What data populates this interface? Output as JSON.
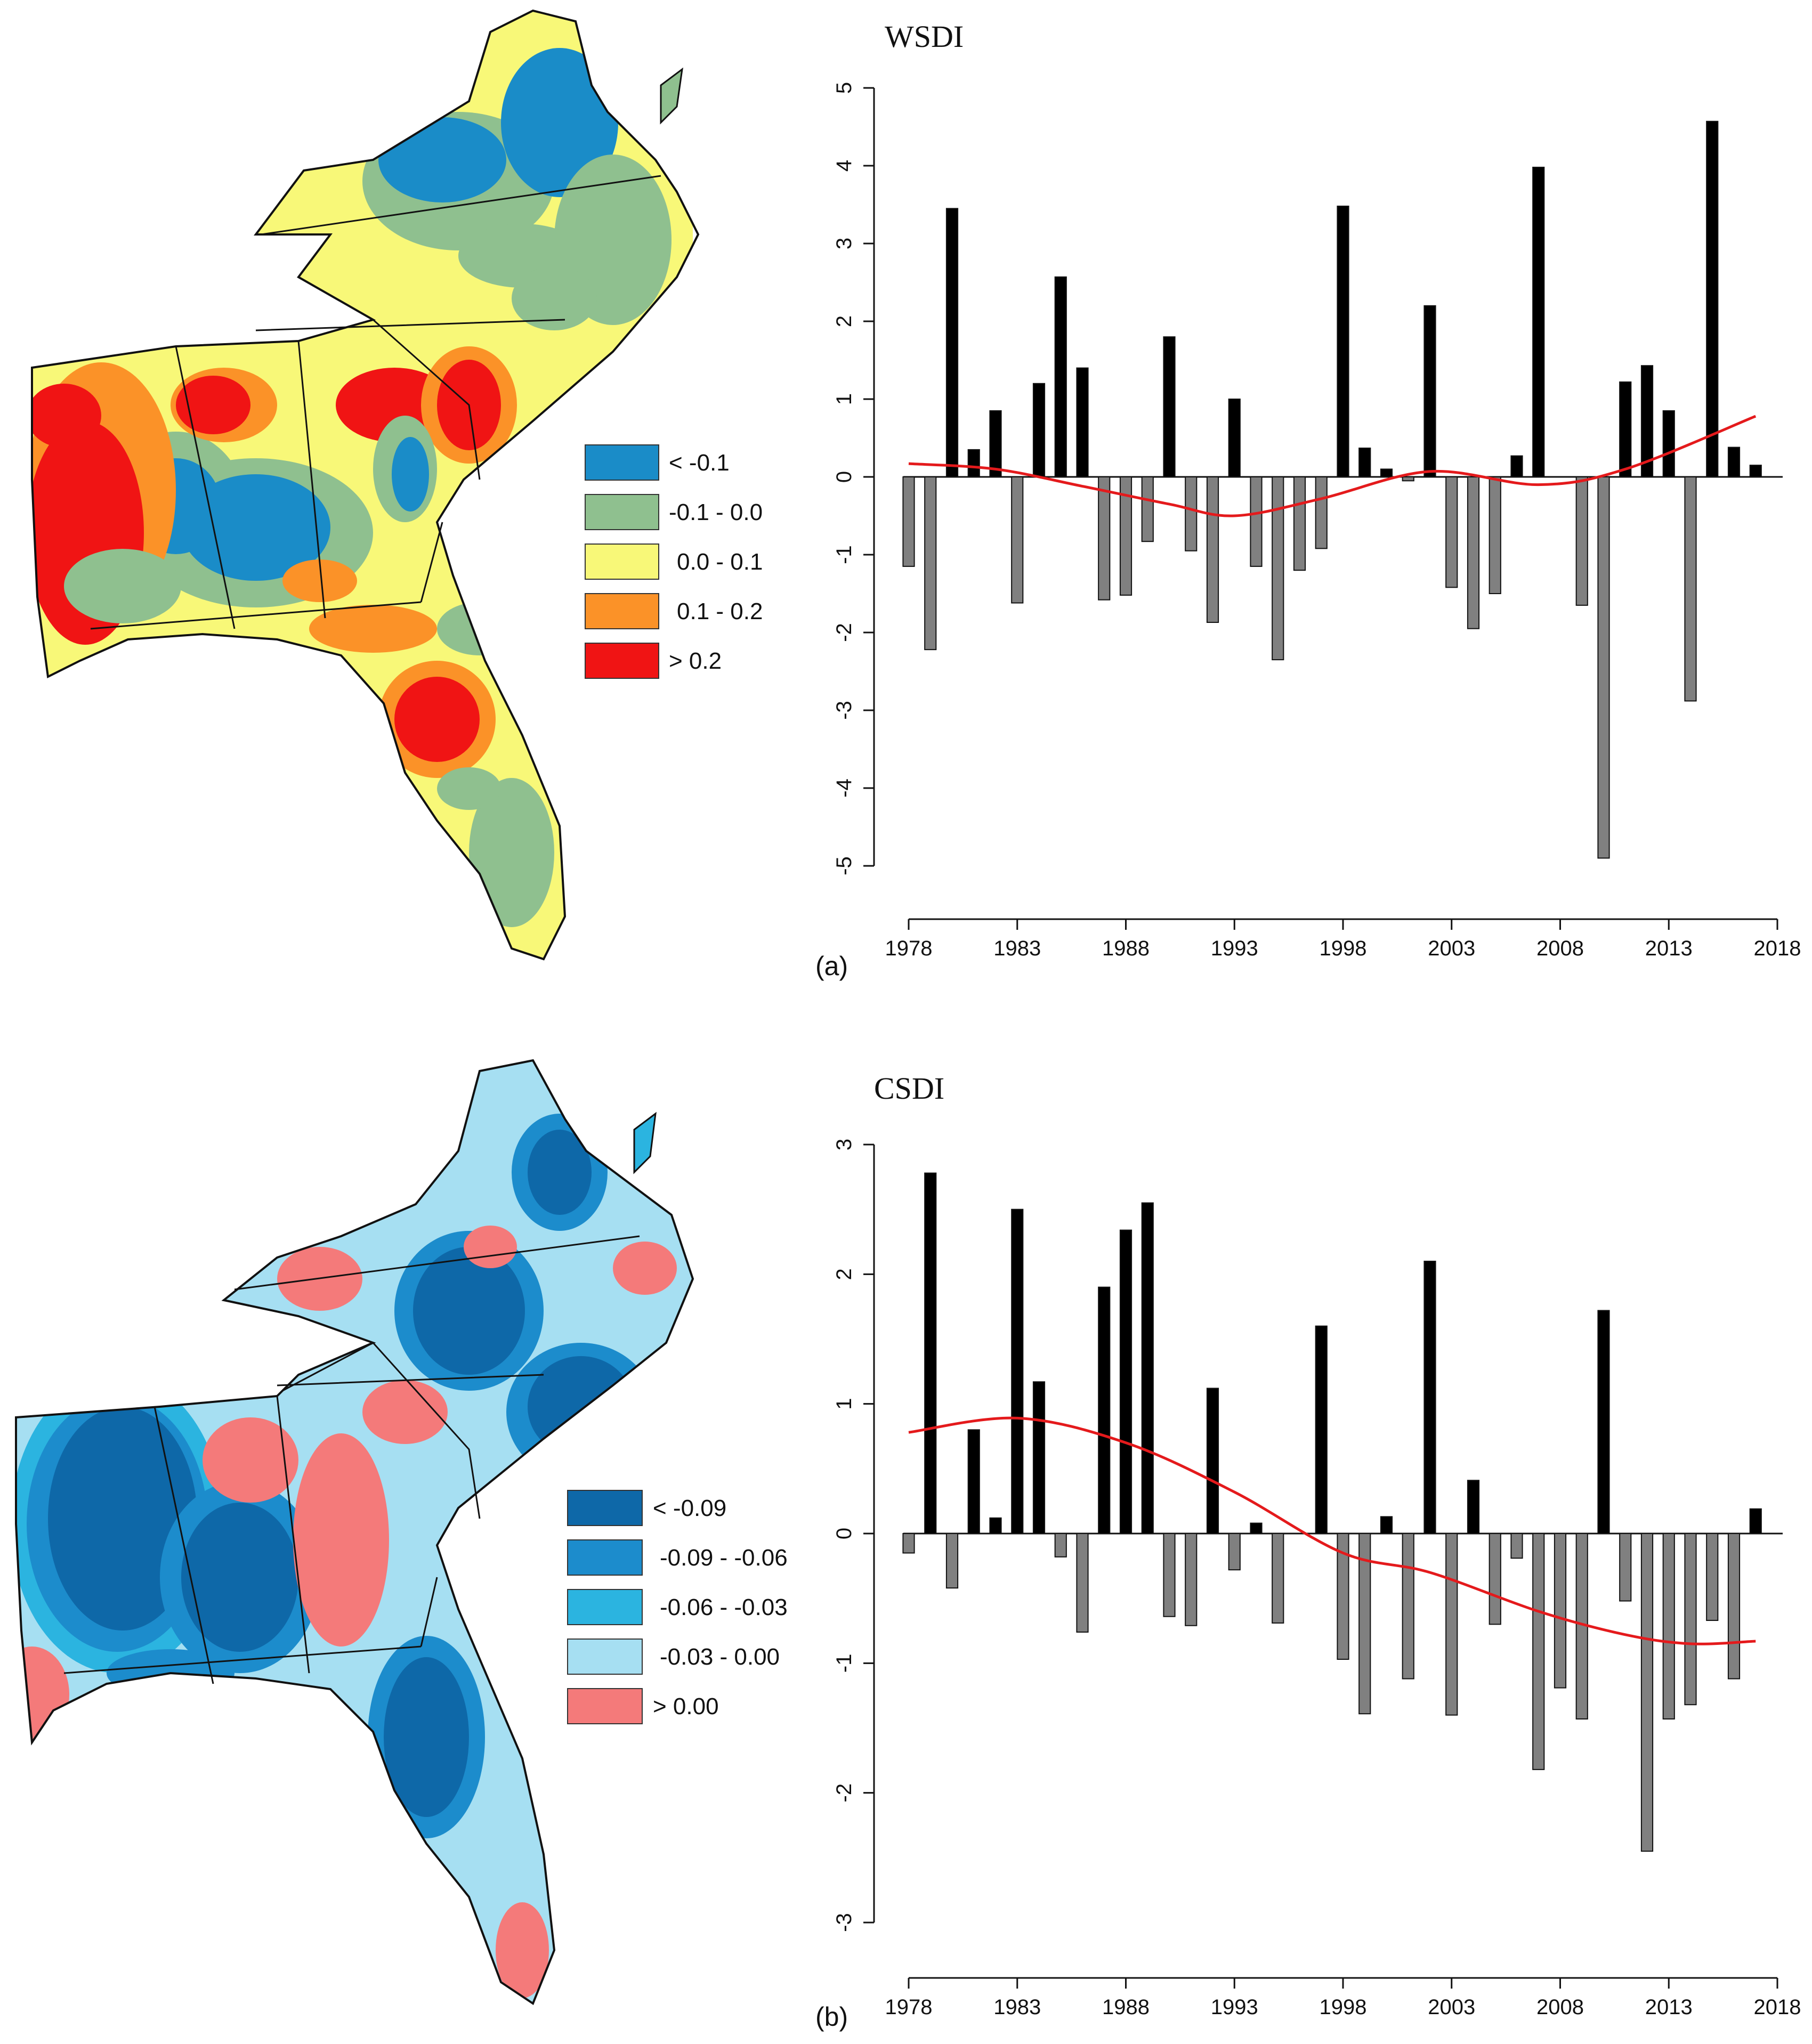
{
  "figure": {
    "panels": [
      {
        "id": "a",
        "panel_label": "(a)",
        "map": {
          "legend": [
            {
              "label": "< -0.1",
              "color": "#1a8cc8"
            },
            {
              "label": "-0.1 - 0.0",
              "color": "#8fc08f"
            },
            {
              "label": "0.0 - 0.1",
              "color": "#f8f878"
            },
            {
              "label": "0.1 - 0.2",
              "color": "#fb9228"
            },
            {
              "label": "> 0.2",
              "color": "#f01414"
            }
          ]
        }
      },
      {
        "id": "b",
        "panel_label": "(b)",
        "map": {
          "legend": [
            {
              "label": "< -0.09",
              "color": "#0e68a8"
            },
            {
              "label": "-0.09  -  -0.06",
              "color": "#1c8ccc"
            },
            {
              "label": "-0.06  -  -0.03",
              "color": "#2bb4e0"
            },
            {
              "label": "-0.03  -  0.00",
              "color": "#a6dff2"
            },
            {
              "label": "> 0.00",
              "color": "#f47a7a"
            }
          ]
        }
      }
    ]
  },
  "chart_data": [
    {
      "type": "bar",
      "title": "WSDI",
      "xlabel": "",
      "ylabel": "",
      "x": [
        1978,
        1979,
        1980,
        1981,
        1982,
        1983,
        1984,
        1985,
        1986,
        1987,
        1988,
        1989,
        1990,
        1991,
        1992,
        1993,
        1994,
        1995,
        1996,
        1997,
        1998,
        1999,
        2000,
        2001,
        2002,
        2003,
        2004,
        2005,
        2006,
        2007,
        2008,
        2009,
        2010,
        2011,
        2012,
        2013,
        2014,
        2015,
        2016,
        2017
      ],
      "values": [
        -1.15,
        -2.22,
        3.45,
        0.35,
        0.85,
        -1.62,
        1.2,
        2.57,
        1.4,
        -1.58,
        -1.52,
        -0.83,
        1.8,
        -0.95,
        -1.87,
        1.0,
        -1.15,
        -2.35,
        -1.2,
        -0.92,
        3.48,
        0.37,
        0.1,
        -0.05,
        2.2,
        -1.42,
        -1.95,
        -1.5,
        0.27,
        3.98,
        0.0,
        -1.65,
        -4.9,
        1.22,
        1.43,
        0.85,
        -2.88,
        4.57,
        0.38,
        0.15
      ],
      "trend": {
        "x": [
          1978,
          1982,
          1986,
          1990,
          1993,
          1997,
          2002,
          2007,
          2011,
          2017
        ],
        "y": [
          0.17,
          0.1,
          -0.12,
          -0.35,
          -0.5,
          -0.28,
          0.07,
          -0.1,
          0.1,
          0.78
        ]
      },
      "colors": {
        "positive": "#000000",
        "negative": "#808080",
        "trend": "#e41a1c"
      },
      "xlim": [
        1978,
        2018
      ],
      "ylim": [
        -5,
        5
      ],
      "yticks": [
        -5,
        -4,
        -3,
        -2,
        -1,
        0,
        1,
        2,
        3,
        4,
        5
      ],
      "xticks": [
        1978,
        1983,
        1988,
        1993,
        1998,
        2003,
        2008,
        2013,
        2018
      ]
    },
    {
      "type": "bar",
      "title": "CSDI",
      "xlabel": "",
      "ylabel": "",
      "x": [
        1978,
        1979,
        1980,
        1981,
        1982,
        1983,
        1984,
        1985,
        1986,
        1987,
        1988,
        1989,
        1990,
        1991,
        1992,
        1993,
        1994,
        1995,
        1996,
        1997,
        1998,
        1999,
        2000,
        2001,
        2002,
        2003,
        2004,
        2005,
        2006,
        2007,
        2008,
        2009,
        2010,
        2011,
        2012,
        2013,
        2014,
        2015,
        2016,
        2017
      ],
      "values": [
        -0.15,
        2.78,
        -0.42,
        0.8,
        0.12,
        2.5,
        1.17,
        -0.18,
        -0.76,
        1.9,
        2.34,
        2.55,
        -0.64,
        -0.71,
        1.12,
        -0.28,
        0.08,
        -0.69,
        0.0,
        1.6,
        -0.97,
        -1.39,
        0.13,
        -1.12,
        2.1,
        -1.4,
        0.41,
        -0.7,
        -0.19,
        -1.82,
        -1.19,
        -1.43,
        1.72,
        -0.52,
        -2.45,
        -1.43,
        -1.32,
        -0.67,
        -1.12,
        0.19
      ],
      "trend": {
        "x": [
          1978,
          1983,
          1988,
          1993,
          1998,
          2002,
          2007,
          2011,
          2014,
          2017
        ],
        "y": [
          0.78,
          0.89,
          0.7,
          0.32,
          -0.15,
          -0.3,
          -0.6,
          -0.78,
          -0.85,
          -0.83
        ]
      },
      "colors": {
        "positive": "#000000",
        "negative": "#808080",
        "trend": "#e41a1c"
      },
      "xlim": [
        1978,
        2018
      ],
      "ylim": [
        -3,
        3
      ],
      "yticks": [
        -3,
        -2,
        -1,
        0,
        1,
        2,
        3
      ],
      "xticks": [
        1978,
        1983,
        1988,
        1993,
        1998,
        2003,
        2008,
        2013,
        2018
      ]
    }
  ]
}
